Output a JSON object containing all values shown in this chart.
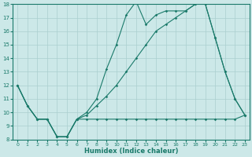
{
  "xlabel": "Humidex (Indice chaleur)",
  "bg_color": "#cce8e8",
  "grid_color": "#aacfcf",
  "line_color": "#1a7a6a",
  "xlim": [
    -0.5,
    23.5
  ],
  "ylim": [
    8,
    18
  ],
  "line1_x": [
    0,
    1,
    2,
    3,
    4,
    5,
    6,
    7,
    8,
    9,
    10,
    11,
    12,
    13,
    14,
    15,
    16,
    17,
    18,
    19,
    20,
    21,
    22,
    23
  ],
  "line1_y": [
    12,
    10.5,
    9.5,
    9.5,
    8.2,
    8.2,
    9.5,
    9.5,
    9.5,
    9.5,
    9.5,
    9.5,
    9.5,
    9.5,
    9.5,
    9.5,
    9.5,
    9.5,
    9.5,
    9.5,
    9.5,
    9.5,
    9.5,
    9.8
  ],
  "line2_x": [
    0,
    1,
    2,
    3,
    4,
    5,
    6,
    7,
    8,
    9,
    10,
    11,
    12,
    13,
    14,
    15,
    16,
    17,
    18,
    19,
    20,
    21,
    22,
    23
  ],
  "line2_y": [
    12,
    10.5,
    9.5,
    9.5,
    8.2,
    8.2,
    9.5,
    10.0,
    11.0,
    13.2,
    15.0,
    17.2,
    18.2,
    16.5,
    17.2,
    17.5,
    17.5,
    17.5,
    18.0,
    18.0,
    15.5,
    13.0,
    11.0,
    9.8
  ],
  "line3_x": [
    0,
    1,
    2,
    3,
    4,
    5,
    6,
    7,
    8,
    9,
    10,
    11,
    12,
    13,
    14,
    15,
    16,
    17,
    18,
    19,
    20,
    21,
    22,
    23
  ],
  "line3_y": [
    12,
    10.5,
    9.5,
    9.5,
    8.2,
    8.2,
    9.5,
    9.8,
    10.5,
    11.2,
    12.0,
    13.0,
    14.0,
    15.0,
    16.0,
    16.5,
    17.0,
    17.5,
    18.0,
    18.0,
    15.5,
    13.0,
    11.0,
    9.8
  ]
}
